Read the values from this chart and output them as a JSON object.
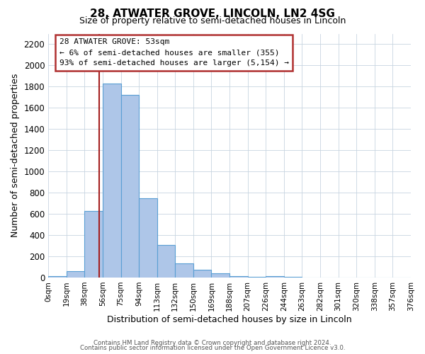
{
  "title": "28, ATWATER GROVE, LINCOLN, LN2 4SG",
  "subtitle": "Size of property relative to semi-detached houses in Lincoln",
  "xlabel": "Distribution of semi-detached houses by size in Lincoln",
  "ylabel": "Number of semi-detached properties",
  "bar_color": "#aec6e8",
  "bar_edge_color": "#5a9fd4",
  "background_color": "#ffffff",
  "grid_color": "#c8d4e0",
  "property_size": 53,
  "property_line_color": "#a52020",
  "annotation_box_edge_color": "#b03030",
  "annotation_title": "28 ATWATER GROVE: 53sqm",
  "annotation_line1": "← 6% of semi-detached houses are smaller (355)",
  "annotation_line2": "93% of semi-detached houses are larger (5,154) →",
  "bin_edges": [
    0,
    19,
    38,
    57,
    76,
    95,
    114,
    133,
    152,
    171,
    190,
    209,
    228,
    247,
    266,
    285,
    304,
    323,
    342,
    361,
    380
  ],
  "bin_labels": [
    "0sqm",
    "19sqm",
    "38sqm",
    "56sqm",
    "75sqm",
    "94sqm",
    "113sqm",
    "132sqm",
    "150sqm",
    "169sqm",
    "188sqm",
    "207sqm",
    "226sqm",
    "244sqm",
    "263sqm",
    "282sqm",
    "301sqm",
    "320sqm",
    "338sqm",
    "357sqm",
    "376sqm"
  ],
  "bar_heights": [
    15,
    60,
    630,
    1830,
    1720,
    745,
    305,
    135,
    70,
    40,
    15,
    5,
    10,
    5,
    3,
    2,
    2,
    2,
    2,
    2
  ],
  "ylim": [
    0,
    2300
  ],
  "yticks": [
    0,
    200,
    400,
    600,
    800,
    1000,
    1200,
    1400,
    1600,
    1800,
    2000,
    2200
  ],
  "footer_line1": "Contains HM Land Registry data © Crown copyright and database right 2024.",
  "footer_line2": "Contains public sector information licensed under the Open Government Licence v3.0."
}
